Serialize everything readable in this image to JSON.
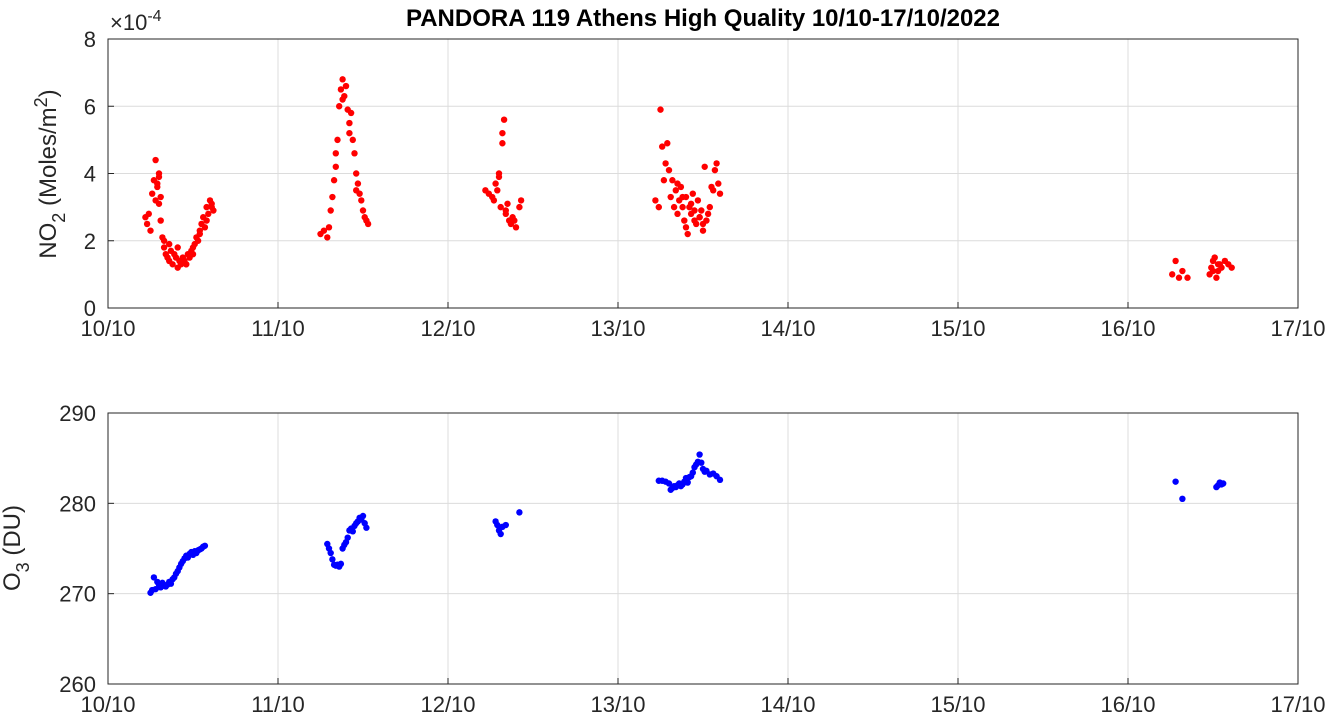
{
  "chart_data": {
    "title": "PANDORA 119 Athens High Quality 10/10-17/10/2022",
    "panels": [
      {
        "type": "scatter",
        "ylabel": "NO2 (Moles/m2)",
        "ylabel_main": "NO",
        "ylabel_sub": "2",
        "ylabel_mid": " (Moles/m",
        "ylabel_sup": "2",
        "ylabel_end": ")",
        "exponent_label": "×10",
        "exponent_power": "-4",
        "xlim": [
          0,
          7
        ],
        "ylim": [
          0,
          8
        ],
        "yticks": [
          "0",
          "2",
          "4",
          "6",
          "8"
        ],
        "xticks": [
          "10/10",
          "11/10",
          "12/10",
          "13/10",
          "14/10",
          "15/10",
          "16/10",
          "17/10"
        ],
        "grid": true,
        "color": "#ff0000",
        "series": [
          {
            "x": [
              0.22,
              0.23,
              0.24,
              0.25,
              0.26,
              0.27,
              0.28,
              0.28,
              0.29,
              0.3,
              0.3,
              0.31,
              0.32,
              0.33,
              0.34,
              0.35,
              0.36,
              0.37,
              0.38,
              0.39,
              0.4,
              0.41,
              0.42,
              0.43,
              0.44,
              0.45,
              0.46,
              0.47,
              0.48,
              0.49,
              0.5,
              0.51,
              0.52,
              0.53,
              0.54,
              0.55,
              0.56,
              0.57,
              0.58,
              0.59,
              0.6,
              0.61,
              0.62,
              0.3,
              0.29,
              0.31,
              0.33,
              0.36,
              0.41,
              0.46,
              0.5,
              0.54,
              0.58,
              0.61,
              1.25,
              1.27,
              1.29,
              1.3,
              1.31,
              1.32,
              1.33,
              1.34,
              1.35,
              1.36,
              1.37,
              1.38,
              1.39,
              1.4,
              1.41,
              1.42,
              1.43,
              1.44,
              1.45,
              1.46,
              1.47,
              1.48,
              1.49,
              1.5,
              1.51,
              1.52,
              1.53,
              1.34,
              1.38,
              1.42,
              1.46,
              2.22,
              2.24,
              2.26,
              2.27,
              2.28,
              2.29,
              2.3,
              2.31,
              2.32,
              2.33,
              2.34,
              2.35,
              2.36,
              2.37,
              2.38,
              2.4,
              2.42,
              2.43,
              2.32,
              2.3,
              2.34,
              2.39,
              3.22,
              3.24,
              3.25,
              3.26,
              3.27,
              3.28,
              3.29,
              3.3,
              3.31,
              3.32,
              3.33,
              3.34,
              3.35,
              3.36,
              3.37,
              3.38,
              3.39,
              3.4,
              3.41,
              3.42,
              3.43,
              3.44,
              3.45,
              3.46,
              3.47,
              3.48,
              3.49,
              3.5,
              3.51,
              3.52,
              3.53,
              3.54,
              3.55,
              3.56,
              3.57,
              3.58,
              3.59,
              3.6,
              3.35,
              3.4,
              3.45,
              3.5,
              3.38,
              3.43,
              3.48,
              6.26,
              6.28,
              6.3,
              6.32,
              6.35,
              6.48,
              6.49,
              6.5,
              6.51,
              6.52,
              6.53,
              6.54,
              6.55,
              6.57,
              6.59,
              6.61,
              6.5,
              6.53
            ],
            "y": [
              2.7,
              2.5,
              2.8,
              2.3,
              3.4,
              3.8,
              4.4,
              3.2,
              3.6,
              3.9,
              3.1,
              2.6,
              2.1,
              1.8,
              1.6,
              1.5,
              1.4,
              1.7,
              1.3,
              1.6,
              1.5,
              1.8,
              1.4,
              1.3,
              1.5,
              1.4,
              1.3,
              1.6,
              1.5,
              1.7,
              1.8,
              1.9,
              2.1,
              2.0,
              2.3,
              2.5,
              2.7,
              2.4,
              3.0,
              2.8,
              3.2,
              3.1,
              2.9,
              4.0,
              3.7,
              3.3,
              2.0,
              1.9,
              1.2,
              1.3,
              1.6,
              2.2,
              2.6,
              3.0,
              2.2,
              2.3,
              2.1,
              2.4,
              2.9,
              3.3,
              3.8,
              4.6,
              5.0,
              6.0,
              6.5,
              6.8,
              6.3,
              6.6,
              5.9,
              5.5,
              5.8,
              5.0,
              4.6,
              4.0,
              3.7,
              3.4,
              3.2,
              2.9,
              2.7,
              2.6,
              2.5,
              4.2,
              6.2,
              5.2,
              3.5,
              3.5,
              3.4,
              3.3,
              3.2,
              3.7,
              3.5,
              3.9,
              3.0,
              5.2,
              5.6,
              2.8,
              3.1,
              2.6,
              2.5,
              2.7,
              2.4,
              3.0,
              3.2,
              4.9,
              4.0,
              2.9,
              2.6,
              3.2,
              3.0,
              5.9,
              4.8,
              3.8,
              4.3,
              4.9,
              4.1,
              3.3,
              3.8,
              3.0,
              3.5,
              2.8,
              3.2,
              3.6,
              3.0,
              2.6,
              2.4,
              2.2,
              3.0,
              2.8,
              3.4,
              2.6,
              2.5,
              3.2,
              2.7,
              2.9,
              2.3,
              4.2,
              2.6,
              2.8,
              3.0,
              3.6,
              3.5,
              4.1,
              4.3,
              3.7,
              3.4,
              3.7,
              3.3,
              2.9,
              2.5,
              3.3,
              3.1,
              2.7,
              1.0,
              1.4,
              0.9,
              1.1,
              0.9,
              1.0,
              1.2,
              1.4,
              1.5,
              0.9,
              1.1,
              1.3,
              1.2,
              1.4,
              1.3,
              1.2,
              1.1,
              1.3
            ]
          }
        ]
      },
      {
        "type": "scatter",
        "ylabel": "O3 (DU)",
        "ylabel_main": "O",
        "ylabel_sub": "3",
        "ylabel_end": " (DU)",
        "xlim": [
          0,
          7
        ],
        "ylim": [
          260,
          290
        ],
        "yticks": [
          "260",
          "270",
          "280",
          "290"
        ],
        "xticks": [
          "10/10",
          "11/10",
          "12/10",
          "13/10",
          "14/10",
          "15/10",
          "16/10",
          "17/10"
        ],
        "grid": true,
        "color": "#0000ff",
        "series": [
          {
            "x": [
              0.25,
              0.26,
              0.27,
              0.28,
              0.29,
              0.3,
              0.31,
              0.32,
              0.33,
              0.34,
              0.35,
              0.36,
              0.37,
              0.38,
              0.39,
              0.4,
              0.41,
              0.42,
              0.43,
              0.44,
              0.45,
              0.46,
              0.47,
              0.48,
              0.49,
              0.5,
              0.51,
              0.52,
              0.53,
              0.54,
              0.55,
              0.56,
              0.57,
              1.29,
              1.3,
              1.31,
              1.32,
              1.33,
              1.34,
              1.35,
              1.36,
              1.37,
              1.38,
              1.39,
              1.4,
              1.41,
              1.42,
              1.43,
              1.44,
              1.45,
              1.46,
              1.47,
              1.48,
              1.49,
              1.5,
              1.51,
              1.52,
              2.28,
              2.29,
              2.3,
              2.31,
              2.32,
              2.34,
              2.42,
              3.24,
              3.26,
              3.28,
              3.3,
              3.31,
              3.32,
              3.33,
              3.34,
              3.35,
              3.36,
              3.37,
              3.38,
              3.39,
              3.4,
              3.41,
              3.42,
              3.43,
              3.44,
              3.45,
              3.46,
              3.47,
              3.48,
              3.49,
              3.5,
              3.51,
              3.52,
              3.54,
              3.56,
              3.58,
              3.6,
              6.28,
              6.32,
              6.52,
              6.53,
              6.54,
              6.55,
              6.56
            ],
            "y": [
              270.1,
              270.4,
              271.8,
              270.5,
              271.3,
              271.0,
              270.7,
              271.2,
              270.9,
              270.8,
              271.0,
              271.3,
              271.1,
              271.6,
              271.8,
              272.2,
              272.5,
              272.9,
              273.3,
              273.6,
              273.9,
              274.2,
              274.0,
              274.4,
              274.6,
              274.3,
              274.7,
              274.5,
              274.8,
              274.9,
              275.0,
              275.2,
              275.3,
              275.5,
              275.0,
              274.5,
              273.8,
              273.2,
              273.1,
              273.2,
              273.0,
              273.3,
              275.0,
              275.4,
              275.7,
              276.2,
              277.0,
              277.2,
              276.9,
              277.5,
              277.8,
              278.0,
              278.4,
              278.2,
              278.6,
              277.8,
              277.3,
              278.0,
              277.6,
              277.0,
              276.6,
              277.4,
              277.6,
              279.0,
              282.5,
              282.5,
              282.4,
              282.2,
              281.5,
              281.7,
              281.9,
              281.8,
              282.0,
              282.2,
              281.9,
              282.1,
              282.4,
              282.8,
              282.3,
              282.9,
              283.0,
              283.4,
              284.0,
              284.3,
              284.6,
              285.4,
              284.5,
              283.8,
              283.5,
              283.6,
              283.2,
              283.3,
              283.0,
              282.6,
              282.4,
              280.5,
              281.8,
              282.0,
              282.3,
              282.1,
              282.2
            ]
          }
        ]
      }
    ]
  }
}
